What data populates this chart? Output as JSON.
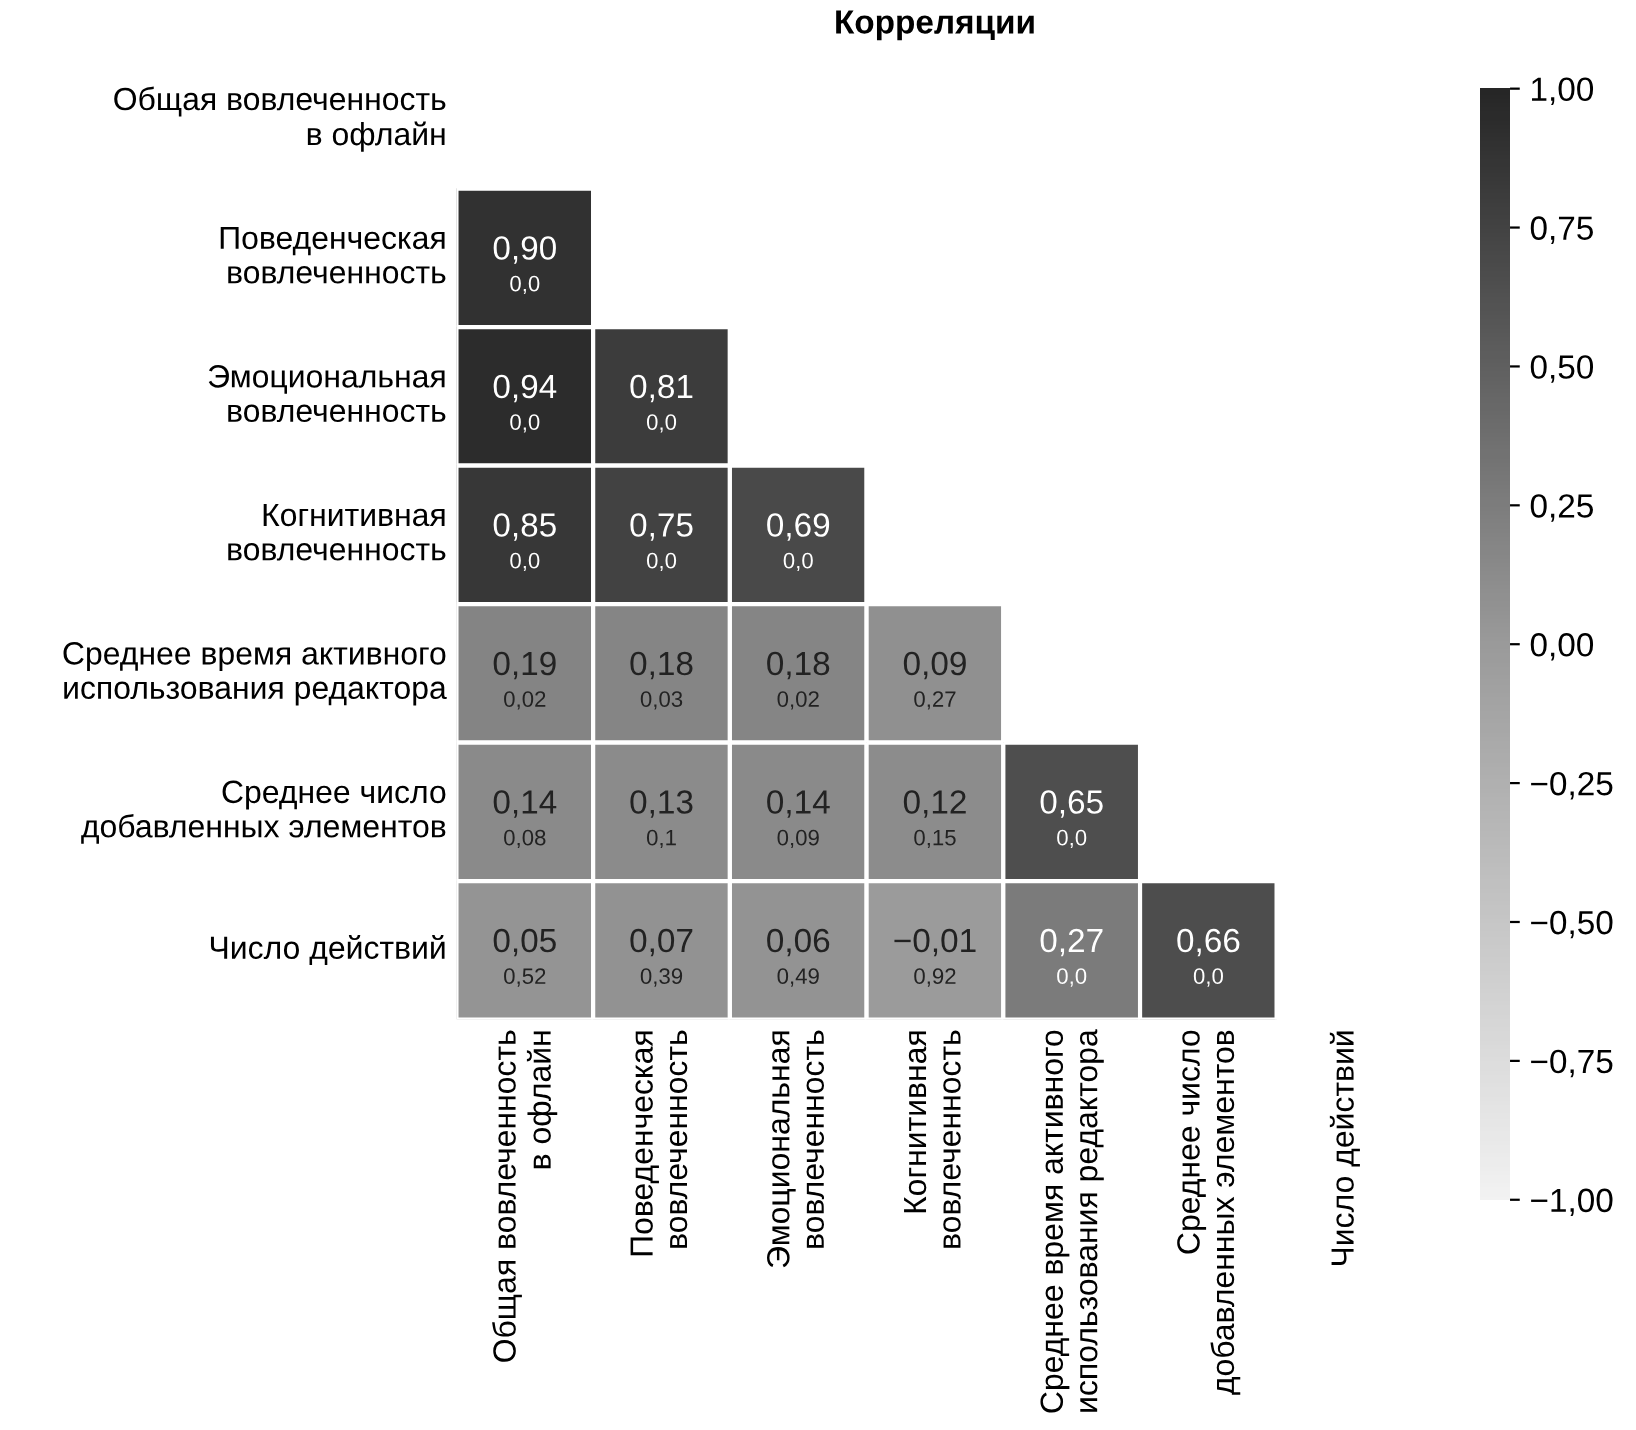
{
  "chart_data": {
    "type": "heatmap",
    "title": "Корреляции",
    "categories": [
      "Общая вовлеченность\nв офлайн",
      "Поведенческая\nвовлеченность",
      "Эмоциональная\nвовлеченность",
      "Когнитивная\nвовлеченность",
      "Среднее время активного\nиспользования редактора",
      "Среднее число\nдобавленных элементов",
      "Число действий"
    ],
    "y_categories": [
      "Общая вовлеченность\nв офлайн",
      "Поведенческая\nвовлеченность",
      "Эмоциональная\nвовлеченность",
      "Когнитивная\nвовлеченность",
      "Среднее время активного\nиспользования редактора",
      "Среднее число\nдобавленных элементов",
      "Число действий"
    ],
    "cells": [
      [
        null,
        null,
        null,
        null,
        null,
        null,
        null
      ],
      [
        0.9,
        null,
        null,
        null,
        null,
        null,
        null
      ],
      [
        0.94,
        0.81,
        null,
        null,
        null,
        null,
        null
      ],
      [
        0.85,
        0.75,
        0.69,
        null,
        null,
        null,
        null
      ],
      [
        0.19,
        0.18,
        0.18,
        0.09,
        null,
        null,
        null
      ],
      [
        0.14,
        0.13,
        0.14,
        0.12,
        0.65,
        null,
        null
      ],
      [
        0.05,
        0.07,
        0.06,
        -0.01,
        0.27,
        0.66,
        null
      ]
    ],
    "cell_labels": [
      [
        null,
        null,
        null,
        null,
        null,
        null,
        null
      ],
      [
        "0,90\n0,0",
        null,
        null,
        null,
        null,
        null,
        null
      ],
      [
        "0,94\n0,0",
        "0,81\n0,0",
        null,
        null,
        null,
        null,
        null
      ],
      [
        "0,85\n0,0",
        "0,75\n0,0",
        "0,69\n0,0",
        null,
        null,
        null,
        null
      ],
      [
        "0,19\n0,02",
        "0,18\n0,03",
        "0,18\n0,02",
        "0,09\n0,27",
        null,
        null,
        null
      ],
      [
        "0,14\n0,08",
        "0,13\n0,1",
        "0,14\n0,09",
        "0,12\n0,15",
        "0,65\n0,0",
        null,
        null
      ],
      [
        "0,05\n0,52",
        "0,07\n0,39",
        "0,06\n0,49",
        "−0,01\n0,92",
        "0,27\n0,0",
        "0,66\n0,0",
        null
      ]
    ],
    "clim": [
      -1,
      1
    ],
    "cticks": [
      {
        "value": 1,
        "label": "1,00"
      },
      {
        "value": 0.75,
        "label": "0,75"
      },
      {
        "value": 0.5,
        "label": "0,50"
      },
      {
        "value": 0.25,
        "label": "0,25"
      },
      {
        "value": 0,
        "label": "0,00"
      },
      {
        "value": -0.25,
        "label": "−0,25"
      },
      {
        "value": -0.5,
        "label": "−0,50"
      },
      {
        "value": -0.75,
        "label": "−0,75"
      },
      {
        "value": -1,
        "label": "−1,00"
      }
    ]
  }
}
